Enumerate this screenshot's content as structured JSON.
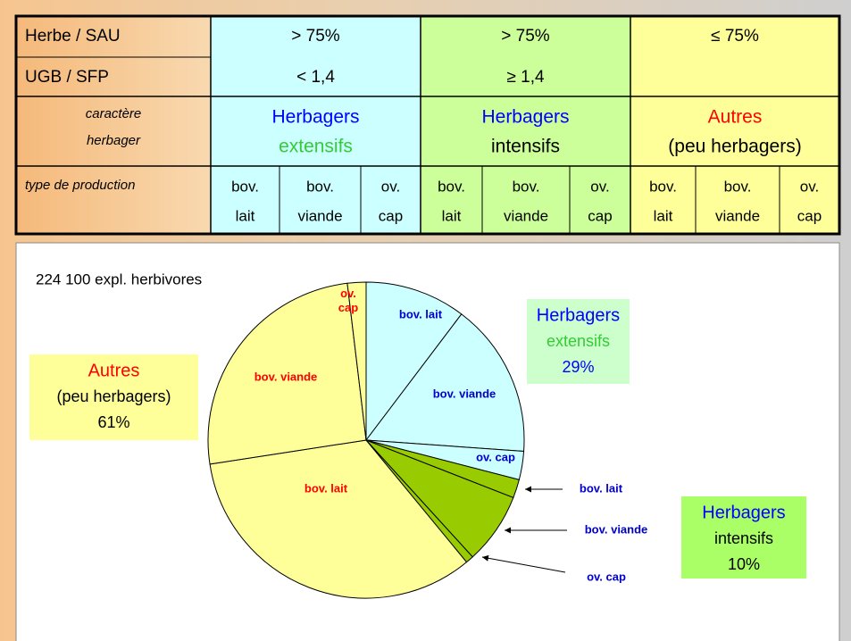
{
  "table": {
    "header_col": {
      "criteria": [
        "Herbe / SAU",
        "UGB / SFP"
      ],
      "character": [
        "caractère",
        "herbager"
      ],
      "production": "type de production"
    },
    "groups": [
      {
        "criteria": [
          "> 75%",
          "< 1,4"
        ],
        "name": [
          "Herbagers",
          "extensifs"
        ],
        "types": [
          [
            "bov.",
            "lait"
          ],
          [
            "bov.",
            "viande"
          ],
          [
            "ov.",
            "cap"
          ]
        ]
      },
      {
        "criteria": [
          "> 75%",
          "≥ 1,4"
        ],
        "name": [
          "Herbagers",
          "intensifs"
        ],
        "types": [
          [
            "bov.",
            "lait"
          ],
          [
            "bov.",
            "viande"
          ],
          [
            "ov.",
            "cap"
          ]
        ]
      },
      {
        "criteria": [
          "≤ 75%"
        ],
        "name": [
          "Autres",
          "(peu herbagers)"
        ],
        "types": [
          [
            "bov.",
            "lait"
          ],
          [
            "bov.",
            "viande"
          ],
          [
            "ov.",
            "cap"
          ]
        ]
      }
    ]
  },
  "chart_data": {
    "type": "pie",
    "title": "224 100 expl. herbivores",
    "categories": [
      "bov. lait",
      "bov. viande",
      "ov. cap",
      "bov. lait",
      "bov. viande",
      "ov. cap",
      "bov. lait",
      "bov. viande",
      "ov. cap"
    ],
    "values": [
      10.3,
      15.8,
      2.9,
      1.9,
      7.3,
      0.8,
      33.5,
      25.5,
      1.9
    ],
    "colors": [
      "#ccffff",
      "#ccffff",
      "#ccffff",
      "#99cc00",
      "#99cc00",
      "#99cc00",
      "#ffff99",
      "#ffff99",
      "#ffff99"
    ],
    "label_colors": [
      "#0000cc",
      "#0000cc",
      "#0000cc",
      "#0000cc",
      "#0000cc",
      "#0000cc",
      "#ff0000",
      "#ff0000",
      "#ff0000"
    ],
    "groups": [
      {
        "lines": [
          "Herbagers",
          "extensifs",
          "29%"
        ],
        "line_colors": [
          "#0000ff",
          "#33cc33",
          "#0000ff"
        ],
        "color": "#ccffcc"
      },
      {
        "lines": [
          "Herbagers",
          "intensifs",
          "10%"
        ],
        "line_colors": [
          "#0000ff",
          "#000000",
          "#000000"
        ],
        "color": "#aaff66"
      },
      {
        "lines": [
          "Autres",
          "(peu herbagers)",
          "61%"
        ],
        "line_colors": [
          "#ff0000",
          "#000000",
          "#000000"
        ],
        "color": "#ffff99"
      }
    ]
  }
}
